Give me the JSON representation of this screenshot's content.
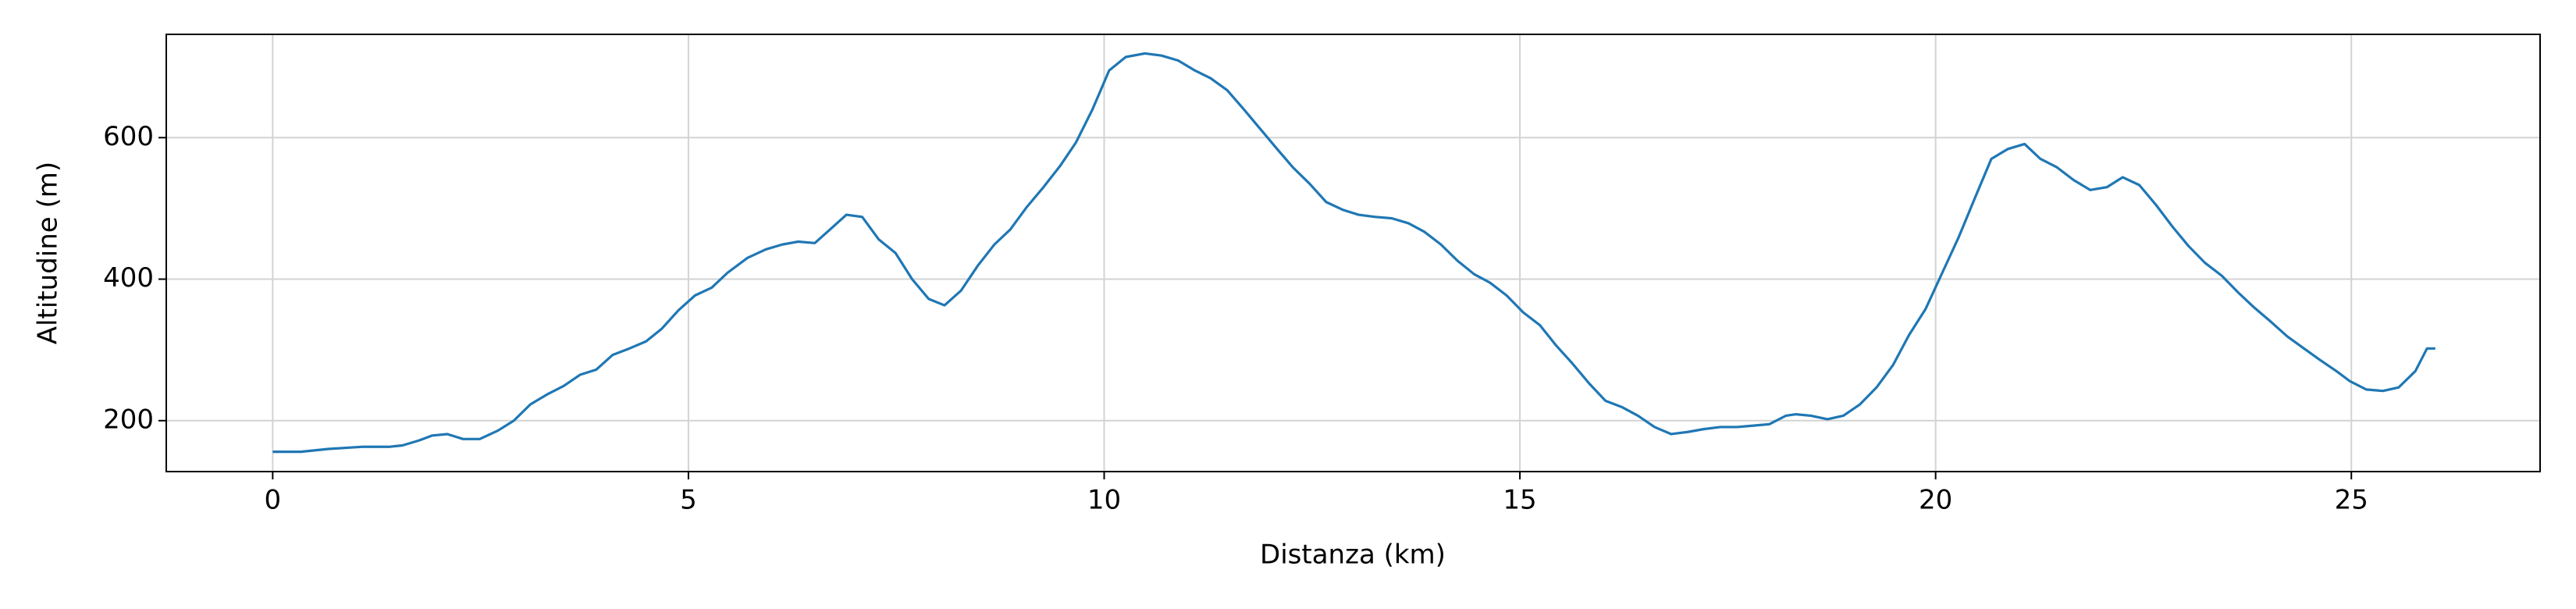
{
  "chart_data": {
    "type": "line",
    "xlabel": "Distanza (km)",
    "ylabel": "Altitudine (m)",
    "x": [
      0,
      0.34,
      0.67,
      1.07,
      1.4,
      1.56,
      1.76,
      1.92,
      2.1,
      2.29,
      2.49,
      2.71,
      2.9,
      3.1,
      3.3,
      3.5,
      3.7,
      3.89,
      4.09,
      4.29,
      4.49,
      4.68,
      4.88,
      5.08,
      5.28,
      5.47,
      5.71,
      5.93,
      6.13,
      6.32,
      6.52,
      6.72,
      6.9,
      7.09,
      7.29,
      7.49,
      7.69,
      7.89,
      8.08,
      8.28,
      8.48,
      8.68,
      8.87,
      9.07,
      9.27,
      9.47,
      9.66,
      9.86,
      10.06,
      10.26,
      10.49,
      10.69,
      10.89,
      11.09,
      11.28,
      11.48,
      11.68,
      11.88,
      12.08,
      12.27,
      12.47,
      12.67,
      12.87,
      13.06,
      13.26,
      13.46,
      13.66,
      13.85,
      14.05,
      14.25,
      14.45,
      14.64,
      14.84,
      15.04,
      15.24,
      15.43,
      15.63,
      15.83,
      16.03,
      16.23,
      16.42,
      16.62,
      16.82,
      17.02,
      17.21,
      17.41,
      17.61,
      17.81,
      18.0,
      18.2,
      18.32,
      18.5,
      18.7,
      18.89,
      19.09,
      19.29,
      19.49,
      19.68,
      19.88,
      20.08,
      20.28,
      20.47,
      20.67,
      20.87,
      21.07,
      21.26,
      21.46,
      21.66,
      21.86,
      22.06,
      22.25,
      22.45,
      22.65,
      22.85,
      23.04,
      23.24,
      23.44,
      23.64,
      23.83,
      24.03,
      24.23,
      24.43,
      24.62,
      24.82,
      24.98,
      25.18,
      25.38,
      25.57,
      25.77,
      25.91,
      26.01
    ],
    "values": [
      156,
      156,
      160,
      163,
      163,
      165,
      172,
      179,
      181,
      174,
      174,
      186,
      200,
      223,
      237,
      249,
      265,
      272,
      293,
      302,
      312,
      330,
      356,
      377,
      388,
      409,
      430,
      442,
      449,
      453,
      451,
      472,
      491,
      488,
      456,
      437,
      400,
      372,
      363,
      384,
      419,
      449,
      470,
      502,
      530,
      560,
      593,
      640,
      695,
      714,
      719,
      716,
      709,
      695,
      684,
      667,
      640,
      612,
      584,
      558,
      535,
      509,
      498,
      491,
      488,
      486,
      479,
      467,
      449,
      426,
      407,
      395,
      377,
      353,
      335,
      307,
      281,
      253,
      228,
      219,
      207,
      191,
      181,
      184,
      188,
      191,
      191,
      193,
      195,
      207,
      209,
      207,
      202,
      207,
      223,
      247,
      279,
      321,
      358,
      409,
      460,
      514,
      570,
      584,
      591,
      570,
      558,
      540,
      526,
      530,
      544,
      533,
      505,
      474,
      447,
      423,
      405,
      381,
      360,
      340,
      319,
      302,
      286,
      270,
      256,
      244,
      242,
      247,
      270,
      302,
      302
    ],
    "color": "#1f77b4",
    "xlim": [
      -1.28,
      27.27
    ],
    "ylim": [
      128,
      746
    ],
    "xticks": [
      0,
      5,
      10,
      15,
      20,
      25
    ],
    "yticks": [
      200,
      400,
      600
    ],
    "grid": true
  }
}
